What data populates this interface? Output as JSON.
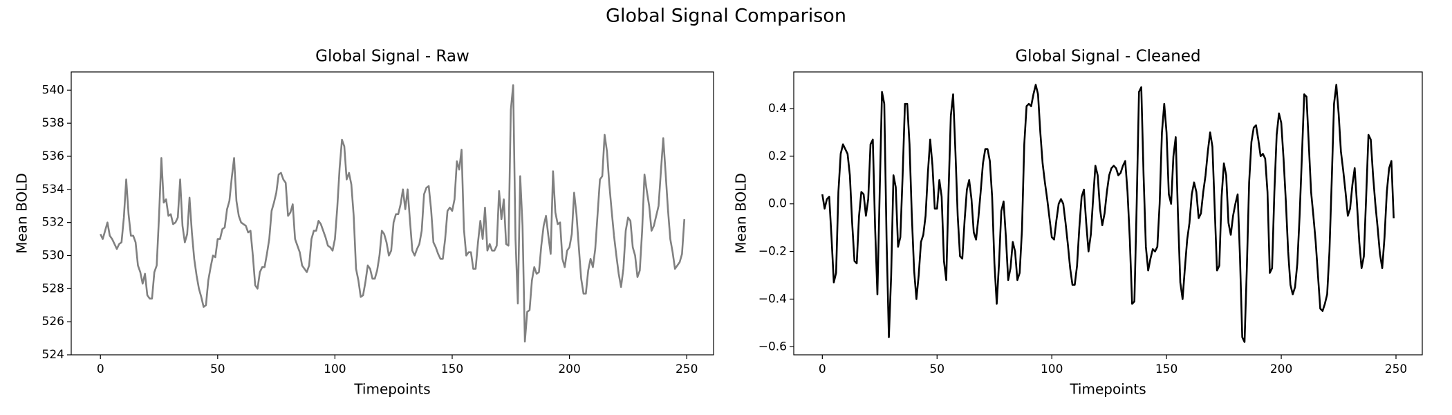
{
  "title": "Global Signal Comparison",
  "chart_data": [
    {
      "type": "line",
      "title": "Global Signal - Raw",
      "xlabel": "Timepoints",
      "ylabel": "Mean BOLD",
      "color": "#808080",
      "xlim": [
        -12.45,
        261.45
      ],
      "xticks": [
        0,
        50,
        100,
        150,
        200,
        250
      ],
      "ylim": [
        524.0,
        541.1
      ],
      "yticks": [
        524,
        526,
        528,
        530,
        532,
        534,
        536,
        538,
        540
      ],
      "grid": false,
      "x": [
        0,
        1,
        2,
        3,
        4,
        5,
        6,
        7,
        8,
        9,
        10,
        11,
        12,
        13,
        14,
        15,
        16,
        17,
        18,
        19,
        20,
        21,
        22,
        23,
        24,
        25,
        26,
        27,
        28,
        29,
        30,
        31,
        32,
        33,
        34,
        35,
        36,
        37,
        38,
        39,
        40,
        41,
        42,
        43,
        44,
        45,
        46,
        47,
        48,
        49,
        50,
        51,
        52,
        53,
        54,
        55,
        56,
        57,
        58,
        59,
        60,
        61,
        62,
        63,
        64,
        65,
        66,
        67,
        68,
        69,
        70,
        71,
        72,
        73,
        74,
        75,
        76,
        77,
        78,
        79,
        80,
        81,
        82,
        83,
        84,
        85,
        86,
        87,
        88,
        89,
        90,
        91,
        92,
        93,
        94,
        95,
        96,
        97,
        98,
        99,
        100,
        101,
        102,
        103,
        104,
        105,
        106,
        107,
        108,
        109,
        110,
        111,
        112,
        113,
        114,
        115,
        116,
        117,
        118,
        119,
        120,
        121,
        122,
        123,
        124,
        125,
        126,
        127,
        128,
        129,
        130,
        131,
        132,
        133,
        134,
        135,
        136,
        137,
        138,
        139,
        140,
        141,
        142,
        143,
        144,
        145,
        146,
        147,
        148,
        149,
        150,
        151,
        152,
        153,
        154,
        155,
        156,
        157,
        158,
        159,
        160,
        161,
        162,
        163,
        164,
        165,
        166,
        167,
        168,
        169,
        170,
        171,
        172,
        173,
        174,
        175,
        176,
        177,
        178,
        179,
        180,
        181,
        182,
        183,
        184,
        185,
        186,
        187,
        188,
        189,
        190,
        191,
        192,
        193,
        194,
        195,
        196,
        197,
        198,
        199,
        200,
        201,
        202,
        203,
        204,
        205,
        206,
        207,
        208,
        209,
        210,
        211,
        212,
        213,
        214,
        215,
        216,
        217,
        218,
        219,
        220,
        221,
        222,
        223,
        224,
        225,
        226,
        227,
        228,
        229,
        230,
        231,
        232,
        233,
        234,
        235,
        236,
        237,
        238,
        239,
        240,
        241,
        242,
        243,
        244,
        245,
        246,
        247,
        248,
        249
      ],
      "values": [
        531.3,
        531.0,
        531.5,
        532.0,
        531.2,
        531.0,
        530.7,
        530.4,
        530.7,
        530.8,
        532.3,
        534.6,
        532.5,
        531.2,
        531.2,
        530.8,
        529.4,
        529.0,
        528.3,
        528.9,
        527.6,
        527.4,
        527.4,
        529.0,
        529.4,
        532.4,
        535.9,
        533.2,
        533.4,
        532.4,
        532.5,
        531.9,
        532.0,
        532.3,
        534.6,
        531.8,
        530.8,
        531.3,
        533.5,
        531.4,
        529.8,
        528.8,
        528.0,
        527.5,
        526.9,
        527.0,
        528.5,
        529.3,
        530.0,
        529.9,
        531.0,
        531.0,
        531.6,
        531.7,
        532.8,
        533.3,
        534.7,
        535.9,
        533.3,
        532.4,
        532.0,
        531.9,
        531.8,
        531.4,
        531.5,
        530.0,
        528.2,
        528.0,
        529.0,
        529.3,
        529.3,
        530.1,
        531.0,
        532.7,
        533.2,
        533.8,
        534.9,
        535.0,
        534.6,
        534.4,
        532.4,
        532.6,
        533.1,
        531.0,
        530.6,
        530.2,
        529.4,
        529.2,
        529.0,
        529.4,
        531.0,
        531.5,
        531.5,
        532.1,
        531.9,
        531.5,
        531.1,
        530.6,
        530.5,
        530.3,
        531.0,
        532.9,
        535.3,
        537.0,
        536.6,
        534.6,
        535.0,
        534.3,
        532.4,
        529.2,
        528.5,
        527.5,
        527.6,
        528.4,
        529.4,
        529.2,
        528.6,
        528.6,
        529.1,
        530.0,
        531.5,
        531.3,
        530.8,
        530.0,
        530.3,
        532.0,
        532.5,
        532.5,
        533.1,
        534.0,
        532.8,
        534.0,
        532.1,
        530.3,
        530.0,
        530.4,
        530.7,
        531.5,
        533.7,
        534.1,
        534.2,
        532.8,
        530.8,
        530.5,
        530.1,
        529.8,
        529.8,
        531.0,
        532.7,
        532.9,
        532.7,
        533.4,
        535.7,
        535.2,
        536.4,
        531.6,
        530.0,
        530.2,
        530.2,
        529.2,
        529.2,
        530.8,
        532.1,
        531.0,
        532.9,
        530.3,
        530.7,
        530.3,
        530.3,
        530.6,
        533.9,
        532.2,
        533.4,
        530.7,
        530.6,
        538.8,
        540.3,
        531.0,
        527.1,
        534.8,
        531.8,
        524.8,
        526.6,
        526.7,
        528.5,
        529.3,
        528.9,
        529.0,
        530.6,
        531.8,
        532.4,
        531.2,
        530.1,
        535.1,
        532.6,
        531.9,
        532.0,
        529.8,
        529.3,
        530.3,
        530.5,
        531.3,
        533.8,
        532.5,
        530.5,
        528.6,
        527.7,
        527.7,
        529.1,
        529.8,
        529.3,
        530.4,
        532.5,
        534.6,
        534.8,
        537.3,
        536.3,
        534.3,
        532.7,
        531.2,
        530.0,
        528.9,
        528.1,
        529.2,
        531.5,
        532.3,
        532.1,
        530.5,
        530.0,
        528.7,
        529.1,
        531.5,
        534.9,
        533.9,
        533.0,
        531.5,
        531.8,
        532.4,
        533.0,
        535.1,
        537.1,
        535.0,
        532.8,
        531.0,
        530.2,
        529.2,
        529.4,
        529.6,
        530.1,
        532.2
      ]
    },
    {
      "type": "line",
      "title": "Global Signal - Cleaned",
      "xlabel": "Timepoints",
      "ylabel": "Mean BOLD",
      "color": "#000000",
      "xlim": [
        -12.45,
        261.45
      ],
      "xticks": [
        0,
        50,
        100,
        150,
        200,
        250
      ],
      "ylim": [
        -0.634,
        0.554
      ],
      "yticks": [
        {
          "value": -0.6,
          "label": "−0.6"
        },
        {
          "value": -0.4,
          "label": "−0.4"
        },
        {
          "value": -0.2,
          "label": "−0.2"
        },
        {
          "value": 0,
          "label": "0.0"
        },
        0.2,
        0.4
      ],
      "grid": false,
      "x": [
        0,
        1,
        2,
        3,
        4,
        5,
        6,
        7,
        8,
        9,
        10,
        11,
        12,
        13,
        14,
        15,
        16,
        17,
        18,
        19,
        20,
        21,
        22,
        23,
        24,
        25,
        26,
        27,
        28,
        29,
        30,
        31,
        32,
        33,
        34,
        35,
        36,
        37,
        38,
        39,
        40,
        41,
        42,
        43,
        44,
        45,
        46,
        47,
        48,
        49,
        50,
        51,
        52,
        53,
        54,
        55,
        56,
        57,
        58,
        59,
        60,
        61,
        62,
        63,
        64,
        65,
        66,
        67,
        68,
        69,
        70,
        71,
        72,
        73,
        74,
        75,
        76,
        77,
        78,
        79,
        80,
        81,
        82,
        83,
        84,
        85,
        86,
        87,
        88,
        89,
        90,
        91,
        92,
        93,
        94,
        95,
        96,
        97,
        98,
        99,
        100,
        101,
        102,
        103,
        104,
        105,
        106,
        107,
        108,
        109,
        110,
        111,
        112,
        113,
        114,
        115,
        116,
        117,
        118,
        119,
        120,
        121,
        122,
        123,
        124,
        125,
        126,
        127,
        128,
        129,
        130,
        131,
        132,
        133,
        134,
        135,
        136,
        137,
        138,
        139,
        140,
        141,
        142,
        143,
        144,
        145,
        146,
        147,
        148,
        149,
        150,
        151,
        152,
        153,
        154,
        155,
        156,
        157,
        158,
        159,
        160,
        161,
        162,
        163,
        164,
        165,
        166,
        167,
        168,
        169,
        170,
        171,
        172,
        173,
        174,
        175,
        176,
        177,
        178,
        179,
        180,
        181,
        182,
        183,
        184,
        185,
        186,
        187,
        188,
        189,
        190,
        191,
        192,
        193,
        194,
        195,
        196,
        197,
        198,
        199,
        200,
        201,
        202,
        203,
        204,
        205,
        206,
        207,
        208,
        209,
        210,
        211,
        212,
        213,
        214,
        215,
        216,
        217,
        218,
        219,
        220,
        221,
        222,
        223,
        224,
        225,
        226,
        227,
        228,
        229,
        230,
        231,
        232,
        233,
        234,
        235,
        236,
        237,
        238,
        239,
        240,
        241,
        242,
        243,
        244,
        245,
        246,
        247,
        248,
        249
      ],
      "values": [
        0.04,
        -0.02,
        0.02,
        0.03,
        -0.14,
        -0.33,
        -0.29,
        0.05,
        0.21,
        0.25,
        0.23,
        0.21,
        0.12,
        -0.08,
        -0.24,
        -0.25,
        -0.05,
        0.05,
        0.04,
        -0.05,
        0.02,
        0.25,
        0.27,
        -0.1,
        -0.38,
        0.05,
        0.47,
        0.42,
        -0.15,
        -0.56,
        -0.3,
        0.12,
        0.07,
        -0.18,
        -0.14,
        0.12,
        0.42,
        0.42,
        0.25,
        -0.05,
        -0.28,
        -0.4,
        -0.3,
        -0.16,
        -0.13,
        -0.05,
        0.13,
        0.27,
        0.16,
        -0.02,
        -0.02,
        0.1,
        0.03,
        -0.24,
        -0.32,
        0.05,
        0.37,
        0.46,
        0.22,
        -0.05,
        -0.22,
        -0.23,
        -0.07,
        0.06,
        0.1,
        0.02,
        -0.12,
        -0.15,
        -0.06,
        0.05,
        0.17,
        0.23,
        0.23,
        0.18,
        0.03,
        -0.25,
        -0.42,
        -0.25,
        -0.03,
        0.01,
        -0.14,
        -0.32,
        -0.27,
        -0.16,
        -0.2,
        -0.32,
        -0.29,
        -0.11,
        0.25,
        0.41,
        0.42,
        0.41,
        0.46,
        0.5,
        0.46,
        0.3,
        0.17,
        0.09,
        0.02,
        -0.06,
        -0.14,
        -0.15,
        -0.07,
        0.0,
        0.02,
        0.0,
        -0.08,
        -0.17,
        -0.27,
        -0.34,
        -0.34,
        -0.26,
        -0.1,
        0.03,
        0.06,
        -0.08,
        -0.2,
        -0.13,
        0.02,
        0.16,
        0.12,
        -0.02,
        -0.09,
        -0.04,
        0.05,
        0.12,
        0.15,
        0.16,
        0.15,
        0.12,
        0.13,
        0.16,
        0.18,
        0.05,
        -0.15,
        -0.42,
        -0.41,
        0.0,
        0.47,
        0.49,
        0.12,
        -0.18,
        -0.28,
        -0.23,
        -0.19,
        -0.2,
        -0.18,
        0.0,
        0.3,
        0.42,
        0.3,
        0.04,
        0.0,
        0.2,
        0.28,
        -0.05,
        -0.33,
        -0.4,
        -0.27,
        -0.15,
        -0.08,
        0.04,
        0.09,
        0.05,
        -0.06,
        -0.04,
        0.05,
        0.12,
        0.22,
        0.3,
        0.24,
        -0.02,
        -0.28,
        -0.26,
        0.03,
        0.17,
        0.12,
        -0.08,
        -0.13,
        -0.05,
        0.0,
        0.04,
        -0.22,
        -0.56,
        -0.58,
        -0.27,
        0.09,
        0.26,
        0.32,
        0.33,
        0.27,
        0.2,
        0.21,
        0.19,
        0.05,
        -0.29,
        -0.27,
        0.05,
        0.29,
        0.38,
        0.34,
        0.19,
        0.01,
        -0.2,
        -0.34,
        -0.38,
        -0.35,
        -0.25,
        -0.05,
        0.2,
        0.46,
        0.45,
        0.25,
        0.05,
        -0.05,
        -0.16,
        -0.3,
        -0.44,
        -0.45,
        -0.42,
        -0.38,
        -0.2,
        0.1,
        0.42,
        0.5,
        0.38,
        0.22,
        0.14,
        0.05,
        -0.05,
        -0.02,
        0.08,
        0.15,
        0.0,
        -0.16,
        -0.27,
        -0.22,
        0.03,
        0.29,
        0.27,
        0.12,
        0.0,
        -0.1,
        -0.21,
        -0.27,
        -0.14,
        0.05,
        0.15,
        0.18,
        -0.06
      ]
    }
  ]
}
